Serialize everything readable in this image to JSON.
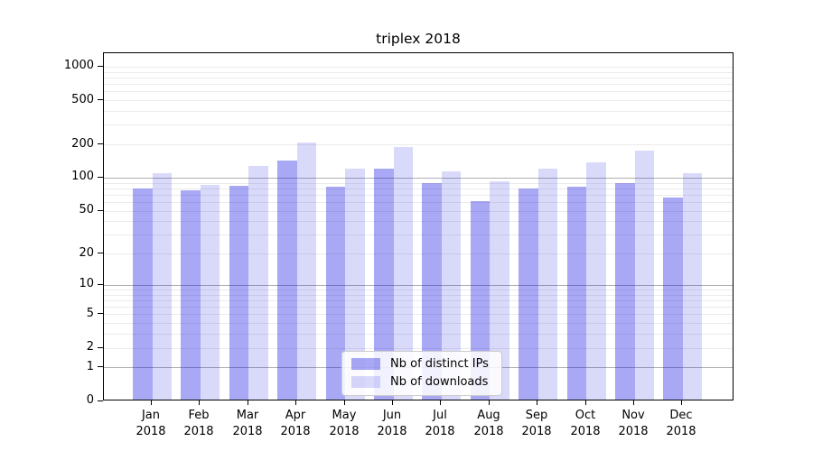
{
  "title": "triplex 2018",
  "chart_data": {
    "type": "bar",
    "title": "triplex 2018",
    "scale": "log1p",
    "categories": [
      "Jan 2018",
      "Feb 2018",
      "Mar 2018",
      "Apr 2018",
      "May 2018",
      "Jun 2018",
      "Jul 2018",
      "Aug 2018",
      "Sep 2018",
      "Oct 2018",
      "Nov 2018",
      "Dec 2018"
    ],
    "series": [
      {
        "name": "Nb of distinct IPs",
        "color": "rgba(20,20,225,0.37)",
        "values": [
          77,
          74,
          82,
          140,
          81,
          117,
          87,
          60,
          77,
          81,
          87,
          64
        ]
      },
      {
        "name": "Nb of downloads",
        "color": "rgba(20,20,225,0.16)",
        "values": [
          106,
          83,
          124,
          203,
          118,
          185,
          110,
          90,
          117,
          133,
          172,
          107
        ]
      }
    ],
    "y_ticks": [
      0,
      1,
      2,
      5,
      10,
      20,
      50,
      100,
      200,
      500,
      1000
    ],
    "ylim": [
      0,
      1300
    ],
    "xlabel": "",
    "ylabel": "",
    "grid": true,
    "legend_position": "lower center"
  },
  "colors": {
    "bar_distinct_ips": "rgba(20,20,225,0.37)",
    "bar_downloads": "rgba(20,20,225,0.16)",
    "grid_minor": "#ebebeb",
    "grid_major": "#b0b0b0",
    "axis": "#000000",
    "legend_border": "#cccccc"
  }
}
